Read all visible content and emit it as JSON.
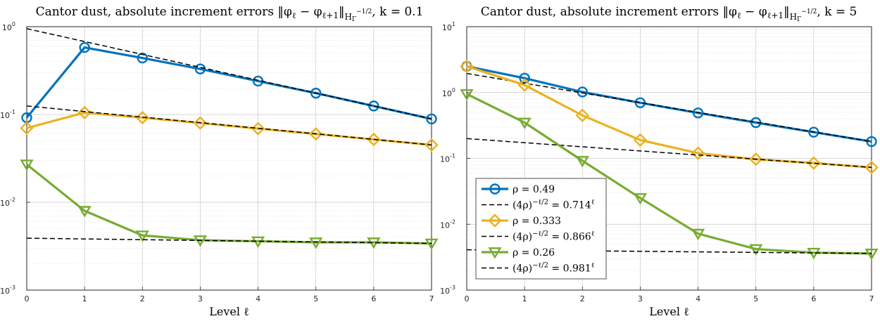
{
  "chart_data": [
    {
      "type": "line",
      "title": "Cantor dust, absolute increment errors ‖φℓ − φℓ+1‖H_Γ^{−1/2}, k = 0.1",
      "title_parts": {
        "main": "Cantor dust, absolute increment errors ",
        "norm": "‖φ",
        "sub1": "ℓ",
        "mid": " − φ",
        "sub2": "ℓ+1",
        "close": "‖",
        "space_sub": "H",
        "space_subsub": "Γ",
        "space_sup": "−1/2",
        "tail": ", k = 0.1"
      },
      "xlabel": "Level ℓ",
      "ylabel": "",
      "yscale": "log",
      "xlim": [
        0,
        7
      ],
      "ylim": [
        0.001,
        1
      ],
      "grid": true,
      "x": [
        0,
        1,
        2,
        3,
        4,
        5,
        6,
        7
      ],
      "x_ticks": [
        "0",
        "1",
        "2",
        "3",
        "4",
        "5",
        "6",
        "7"
      ],
      "y_ticks": [
        {
          "value": 0.001,
          "base": "10",
          "exp": "-3"
        },
        {
          "value": 0.01,
          "base": "10",
          "exp": "-2"
        },
        {
          "value": 0.1,
          "base": "10",
          "exp": "-1"
        },
        {
          "value": 1,
          "base": "10",
          "exp": "0"
        }
      ],
      "series": [
        {
          "name": "ρ = 0.49",
          "marker": "circle",
          "color": "#0072bd",
          "values": [
            0.092,
            0.58,
            0.44,
            0.33,
            0.24,
            0.175,
            0.125,
            0.089
          ]
        },
        {
          "name": "(4ρ)^{−ℓ/2} = 0.714^ℓ",
          "dashed": true,
          "color": "#000000",
          "x": [
            0,
            7
          ],
          "values": [
            0.95,
            0.089
          ]
        },
        {
          "name": "ρ = 0.333",
          "marker": "diamond",
          "color": "#edb120",
          "values": [
            0.07,
            0.105,
            0.092,
            0.08,
            0.069,
            0.06,
            0.052,
            0.045
          ]
        },
        {
          "name": "(4ρ)^{−ℓ/2} = 0.866^ℓ",
          "dashed": true,
          "color": "#000000",
          "x": [
            0,
            7
          ],
          "values": [
            0.125,
            0.045
          ]
        },
        {
          "name": "ρ = 0.26",
          "marker": "triangle-down",
          "color": "#77ac30",
          "values": [
            0.027,
            0.008,
            0.0042,
            0.0037,
            0.0036,
            0.0035,
            0.0035,
            0.0034
          ]
        },
        {
          "name": "(4ρ)^{−ℓ/2} = 0.981^ℓ",
          "dashed": true,
          "color": "#000000",
          "x": [
            0,
            7
          ],
          "values": [
            0.0039,
            0.0034
          ]
        }
      ]
    },
    {
      "type": "line",
      "title": "Cantor dust, absolute increment errors ‖φℓ − φℓ+1‖H_Γ^{−1/2}, k = 5",
      "title_parts": {
        "main": "Cantor dust, absolute increment errors ",
        "norm": "‖φ",
        "sub1": "ℓ",
        "mid": " − φ",
        "sub2": "ℓ+1",
        "close": "‖",
        "space_sub": "H",
        "space_subsub": "Γ",
        "space_sup": "−1/2",
        "tail": ", k = 5"
      },
      "xlabel": "Level ℓ",
      "ylabel": "",
      "yscale": "log",
      "xlim": [
        0,
        7
      ],
      "ylim": [
        0.001,
        10
      ],
      "grid": true,
      "legend_position": "center-left",
      "x": [
        0,
        1,
        2,
        3,
        4,
        5,
        6,
        7
      ],
      "x_ticks": [
        "0",
        "1",
        "2",
        "3",
        "4",
        "5",
        "6",
        "7"
      ],
      "y_ticks": [
        {
          "value": 0.001,
          "base": "10",
          "exp": "-3"
        },
        {
          "value": 0.01,
          "base": "10",
          "exp": "-2"
        },
        {
          "value": 0.1,
          "base": "10",
          "exp": "-1"
        },
        {
          "value": 1,
          "base": "10",
          "exp": "0"
        },
        {
          "value": 10,
          "base": "10",
          "exp": "1"
        }
      ],
      "legend": [
        {
          "label_prefix": "ρ = 0.49",
          "marker": "circle",
          "color": "#0072bd"
        },
        {
          "label_prefix": "(4ρ)",
          "label_sup": "−ℓ/2",
          "label_mid": " = 0.714",
          "label_sup2": "ℓ",
          "dashed": true,
          "color": "#000000"
        },
        {
          "label_prefix": "ρ = 0.333",
          "marker": "diamond",
          "color": "#edb120"
        },
        {
          "label_prefix": "(4ρ)",
          "label_sup": "−ℓ/2",
          "label_mid": " = 0.866",
          "label_sup2": "ℓ",
          "dashed": true,
          "color": "#000000"
        },
        {
          "label_prefix": "ρ = 0.26",
          "marker": "triangle-down",
          "color": "#77ac30"
        },
        {
          "label_prefix": "(4ρ)",
          "label_sup": "−ℓ/2",
          "label_mid": " = 0.981",
          "label_sup2": "ℓ",
          "dashed": true,
          "color": "#000000"
        }
      ],
      "series": [
        {
          "name": "ρ = 0.49",
          "marker": "circle",
          "color": "#0072bd",
          "values": [
            2.5,
            1.65,
            1.02,
            0.7,
            0.49,
            0.35,
            0.25,
            0.18
          ]
        },
        {
          "name": "(4ρ)^{−ℓ/2} = 0.714^ℓ",
          "dashed": true,
          "color": "#000000",
          "x": [
            0,
            7
          ],
          "values": [
            1.95,
            0.18
          ]
        },
        {
          "name": "ρ = 0.333",
          "marker": "diamond",
          "color": "#edb120",
          "values": [
            2.5,
            1.3,
            0.45,
            0.19,
            0.12,
            0.097,
            0.085,
            0.073
          ]
        },
        {
          "name": "(4ρ)^{−ℓ/2} = 0.866^ℓ",
          "dashed": true,
          "color": "#000000",
          "x": [
            0,
            7
          ],
          "values": [
            0.2,
            0.073
          ]
        },
        {
          "name": "ρ = 0.26",
          "marker": "triangle-down",
          "color": "#77ac30",
          "values": [
            0.95,
            0.35,
            0.092,
            0.025,
            0.0072,
            0.0042,
            0.0037,
            0.0036
          ]
        },
        {
          "name": "(4ρ)^{−ℓ/2} = 0.981^ℓ",
          "dashed": true,
          "color": "#000000",
          "x": [
            0,
            7
          ],
          "values": [
            0.0041,
            0.0036
          ]
        }
      ]
    }
  ]
}
